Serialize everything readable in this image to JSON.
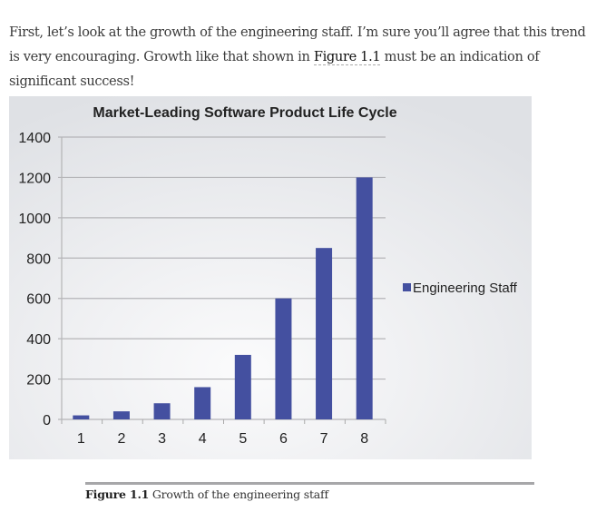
{
  "paragraph": {
    "before": "First, let’s look at the growth of the engineering staff. I’m sure you’ll agree that this trend is very encouraging. Growth like that shown in ",
    "link": "Figure 1.1",
    "after": " must be an indication of significant success!"
  },
  "caption": {
    "label": "Figure 1.1",
    "text": " Growth of the engineering staff"
  },
  "chart_data": {
    "type": "bar",
    "title": "Market-Leading Software Product Life Cycle",
    "categories": [
      "1",
      "2",
      "3",
      "4",
      "5",
      "6",
      "7",
      "8"
    ],
    "series": [
      {
        "name": "Engineering Staff",
        "values": [
          20,
          40,
          80,
          160,
          320,
          600,
          850,
          1200
        ],
        "color": "#4450a0"
      }
    ],
    "xlabel": "",
    "ylabel": "",
    "ylim": [
      0,
      1400
    ],
    "yticks": [
      0,
      200,
      400,
      600,
      800,
      1000,
      1200,
      1400
    ],
    "grid": true,
    "legend": "right"
  }
}
